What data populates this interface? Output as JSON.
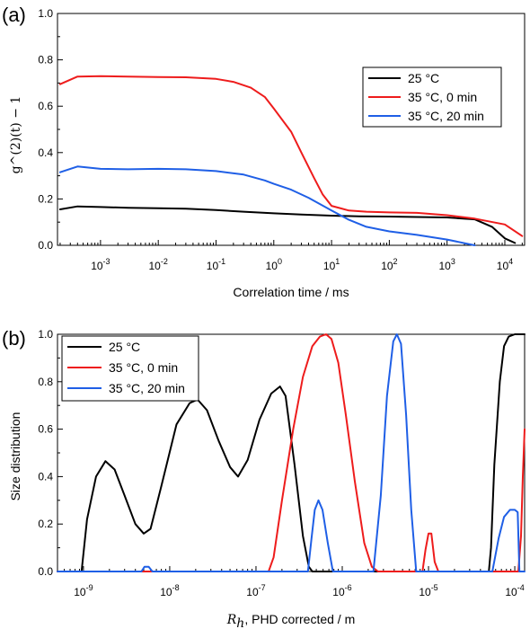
{
  "chart_data": [
    {
      "panel_label": "(a)",
      "type": "line",
      "xscale": "log",
      "xlabel": "Correlation time / ms",
      "ylabel": "g^(2)(t) − 1",
      "xlim": [
        0.00018,
        22000
      ],
      "ylim": [
        0,
        1.0
      ],
      "x_ticks": [
        {
          "value": 0.001,
          "base": "10",
          "exp": "-3"
        },
        {
          "value": 0.01,
          "base": "10",
          "exp": "-2"
        },
        {
          "value": 0.1,
          "base": "10",
          "exp": "-1"
        },
        {
          "value": 1,
          "base": "10",
          "exp": "0"
        },
        {
          "value": 10,
          "base": "10",
          "exp": "1"
        },
        {
          "value": 100,
          "base": "10",
          "exp": "2"
        },
        {
          "value": 1000,
          "base": "10",
          "exp": "3"
        },
        {
          "value": 10000,
          "base": "10",
          "exp": "4"
        }
      ],
      "y_ticks": [
        "0.0",
        "0.2",
        "0.4",
        "0.6",
        "0.8",
        "1.0"
      ],
      "legend_position": "right",
      "series": [
        {
          "name": "25 °C",
          "color": "#000000",
          "x": [
            0.0002,
            0.0004,
            0.001,
            0.003,
            0.01,
            0.03,
            0.1,
            0.3,
            1,
            3,
            10,
            30,
            100,
            300,
            1000,
            3000,
            6000,
            10000,
            15000
          ],
          "y": [
            0.155,
            0.168,
            0.165,
            0.162,
            0.16,
            0.158,
            0.152,
            0.145,
            0.138,
            0.133,
            0.128,
            0.125,
            0.124,
            0.122,
            0.12,
            0.112,
            0.08,
            0.03,
            0.01
          ]
        },
        {
          "name": "35 °C, 0 min",
          "color": "#ee1c1c",
          "x": [
            0.0002,
            0.0004,
            0.001,
            0.003,
            0.01,
            0.03,
            0.1,
            0.2,
            0.4,
            0.7,
            1,
            2,
            3,
            5,
            7,
            10,
            20,
            40,
            100,
            300,
            1000,
            3000,
            10000,
            20000
          ],
          "y": [
            0.695,
            0.728,
            0.73,
            0.728,
            0.726,
            0.725,
            0.718,
            0.705,
            0.68,
            0.64,
            0.59,
            0.49,
            0.4,
            0.29,
            0.22,
            0.17,
            0.15,
            0.145,
            0.142,
            0.14,
            0.13,
            0.115,
            0.09,
            0.04
          ]
        },
        {
          "name": "35 °C, 20 min",
          "color": "#1f5fe6",
          "x": [
            0.0002,
            0.0004,
            0.001,
            0.003,
            0.01,
            0.03,
            0.1,
            0.3,
            0.7,
            1,
            2,
            4,
            10,
            20,
            40,
            100,
            300,
            1000,
            3000
          ],
          "y": [
            0.315,
            0.34,
            0.33,
            0.328,
            0.33,
            0.328,
            0.32,
            0.305,
            0.28,
            0.265,
            0.24,
            0.205,
            0.15,
            0.11,
            0.08,
            0.06,
            0.045,
            0.025,
            0.0
          ]
        }
      ]
    },
    {
      "panel_label": "(b)",
      "type": "line",
      "xscale": "log",
      "xlabel_math": "R",
      "xlabel_sub": "h",
      "xlabel_rest": ", PHD corrected / m",
      "ylabel": "Size distribution",
      "xlim": [
        5e-10,
        0.00013
      ],
      "ylim": [
        0,
        1.0
      ],
      "x_ticks": [
        {
          "value": 1e-09,
          "base": "10",
          "exp": "-9"
        },
        {
          "value": 1e-08,
          "base": "10",
          "exp": "-8"
        },
        {
          "value": 1e-07,
          "base": "10",
          "exp": "-7"
        },
        {
          "value": 1e-06,
          "base": "10",
          "exp": "-6"
        },
        {
          "value": 1e-05,
          "base": "10",
          "exp": "-5"
        },
        {
          "value": 0.0001,
          "base": "10",
          "exp": "-4"
        }
      ],
      "y_ticks": [
        "0.0",
        "0.2",
        "0.4",
        "0.6",
        "0.8",
        "1.0"
      ],
      "legend_position": "top-left",
      "series": [
        {
          "name": "25 °C",
          "color": "#000000",
          "x": [
            5e-10,
            9.5e-10,
            1.1e-09,
            1.4e-09,
            1.8e-09,
            2.3e-09,
            3e-09,
            4e-09,
            5e-09,
            6e-09,
            8e-09,
            1.2e-08,
            1.7e-08,
            2.1e-08,
            2.7e-08,
            3.7e-08,
            5e-08,
            6.2e-08,
            8e-08,
            1.1e-07,
            1.5e-07,
            1.9e-07,
            2.2e-07,
            2.8e-07,
            3.5e-07,
            4.1e-07,
            4.5e-07,
            5e-05,
            5.3e-05,
            5.8e-05,
            6.7e-05,
            7.5e-05,
            8.5e-05,
            0.0001,
            0.00012,
            0.00013
          ],
          "y": [
            0,
            0,
            0.22,
            0.4,
            0.465,
            0.43,
            0.32,
            0.2,
            0.16,
            0.18,
            0.36,
            0.62,
            0.71,
            0.725,
            0.68,
            0.55,
            0.44,
            0.4,
            0.47,
            0.64,
            0.75,
            0.78,
            0.74,
            0.45,
            0.15,
            0.02,
            0,
            0,
            0.1,
            0.45,
            0.8,
            0.95,
            0.99,
            1.0,
            1.0,
            1.0
          ]
        },
        {
          "name": "35 °C, 0 min",
          "color": "#ee1c1c",
          "x": [
            5e-10,
            1.4e-07,
            1.6e-07,
            2e-07,
            2.7e-07,
            3.5e-07,
            4.5e-07,
            5.5e-07,
            6.5e-07,
            7.5e-07,
            9e-07,
            1.1e-06,
            1.4e-06,
            1.8e-06,
            2.2e-06,
            2.6e-06,
            8.5e-06,
            9.2e-06,
            1e-05,
            1.08e-05,
            1.18e-05,
            1.3e-05,
            0.00011,
            0.000118,
            0.000124,
            0.00013
          ],
          "y": [
            0,
            0,
            0.06,
            0.3,
            0.6,
            0.82,
            0.95,
            0.99,
            1.0,
            0.98,
            0.88,
            0.66,
            0.38,
            0.12,
            0.02,
            0,
            0,
            0.09,
            0.16,
            0.16,
            0.04,
            0,
            0,
            0.15,
            0.4,
            0.6
          ]
        },
        {
          "name": "35 °C, 20 min",
          "color": "#1f5fe6",
          "x": [
            5e-10,
            4.7e-09,
            5.1e-09,
            5.7e-09,
            6.3e-09,
            4e-07,
            4.4e-07,
            4.8e-07,
            5.3e-07,
            5.9e-07,
            6.8e-07,
            7.8e-07,
            2.3e-06,
            2.8e-06,
            3.3e-06,
            3.9e-06,
            4.3e-06,
            4.8e-06,
            5.5e-06,
            6.3e-06,
            7.2e-06,
            5.5e-05,
            6.5e-05,
            7.5e-05,
            8.8e-05,
            0.0001,
            0.000108,
            0.000113,
            0.00013
          ],
          "y": [
            0,
            0,
            0.02,
            0.02,
            0,
            0,
            0.14,
            0.26,
            0.3,
            0.26,
            0.12,
            0,
            0,
            0.32,
            0.74,
            0.97,
            1.0,
            0.96,
            0.66,
            0.26,
            0,
            0,
            0.14,
            0.23,
            0.26,
            0.26,
            0.25,
            0,
            0
          ]
        }
      ]
    }
  ]
}
